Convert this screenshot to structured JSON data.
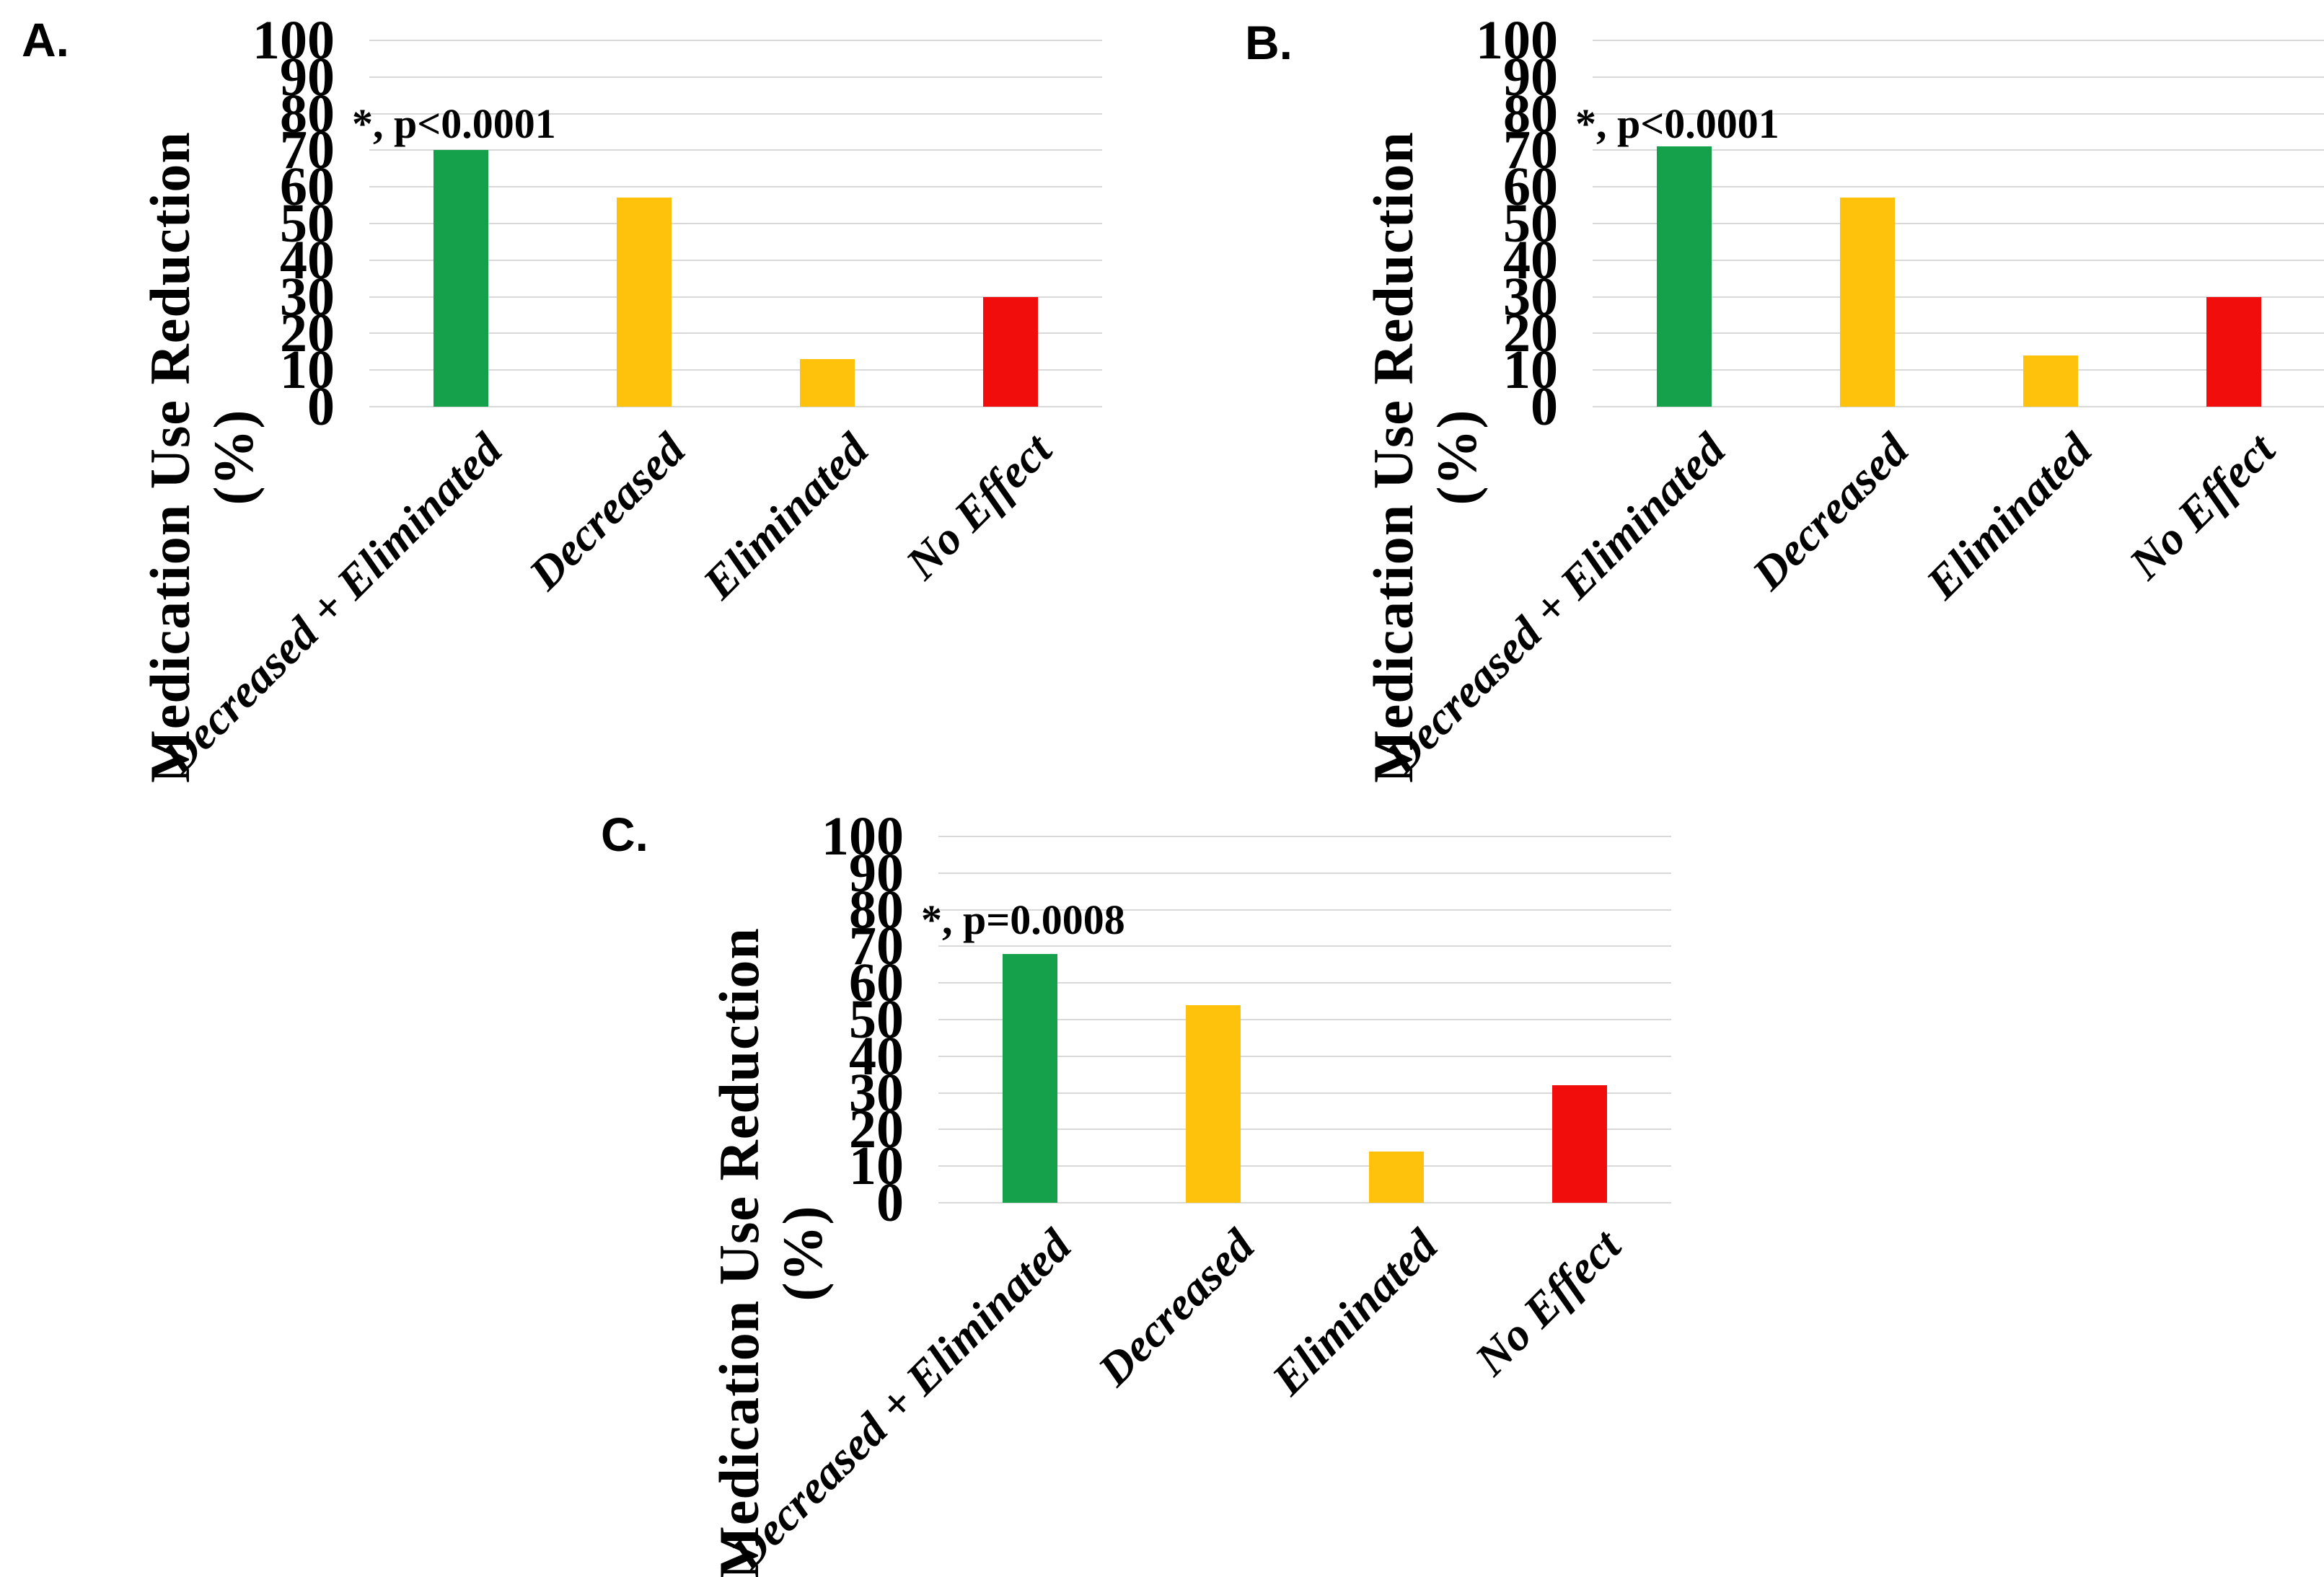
{
  "figure": {
    "panels": [
      {
        "label": "A."
      },
      {
        "label": "B."
      },
      {
        "label": "C."
      }
    ]
  },
  "colors": {
    "green": "#15A04B",
    "gold": "#FEC20C",
    "red": "#F20D0D",
    "gridline": "#D9D9D9",
    "text": "#000000"
  },
  "chart_data": [
    {
      "type": "bar",
      "panel": "A",
      "title": "",
      "xlabel": "",
      "ylabel": "Medication Use Reduction (%)",
      "ylabel_lines": [
        "Medication Use Reduction",
        "(%)"
      ],
      "categories": [
        "Decreased + Eliminated",
        "Decreased",
        "Eliminated",
        "No Effect"
      ],
      "values": [
        70,
        57,
        13,
        30
      ],
      "bar_colors": [
        "#15A04B",
        "#FEC20C",
        "#FEC20C",
        "#F20D0D"
      ],
      "annotation": "*, p<0.0001",
      "ylim": [
        0,
        100
      ],
      "yticks": [
        0,
        10,
        20,
        30,
        40,
        50,
        60,
        70,
        80,
        90,
        100
      ],
      "grid": true,
      "legend": "none"
    },
    {
      "type": "bar",
      "panel": "B",
      "title": "",
      "xlabel": "",
      "ylabel": "Medication Use Reduction (%)",
      "ylabel_lines": [
        "Medication Use Reduction",
        "(%)"
      ],
      "categories": [
        "Decreased + Eliminated",
        "Decreased",
        "Eliminated",
        "No Effect"
      ],
      "values": [
        71,
        57,
        14,
        30
      ],
      "bar_colors": [
        "#15A04B",
        "#FEC20C",
        "#FEC20C",
        "#F20D0D"
      ],
      "annotation": "*, p<0.0001",
      "ylim": [
        0,
        100
      ],
      "yticks": [
        0,
        10,
        20,
        30,
        40,
        50,
        60,
        70,
        80,
        90,
        100
      ],
      "grid": true,
      "legend": "none"
    },
    {
      "type": "bar",
      "panel": "C",
      "title": "",
      "xlabel": "",
      "ylabel": "Medication Use Reduction (%)",
      "ylabel_lines": [
        "Medication Use Reduction",
        "(%)"
      ],
      "categories": [
        "Decreased + Eliminated",
        "Decreased",
        "Eliminated",
        "No Effect"
      ],
      "values": [
        68,
        54,
        14,
        32
      ],
      "bar_colors": [
        "#15A04B",
        "#FEC20C",
        "#FEC20C",
        "#F20D0D"
      ],
      "annotation": "*, p=0.0008",
      "ylim": [
        0,
        100
      ],
      "yticks": [
        0,
        10,
        20,
        30,
        40,
        50,
        60,
        70,
        80,
        90,
        100
      ],
      "grid": true,
      "legend": "none"
    }
  ]
}
